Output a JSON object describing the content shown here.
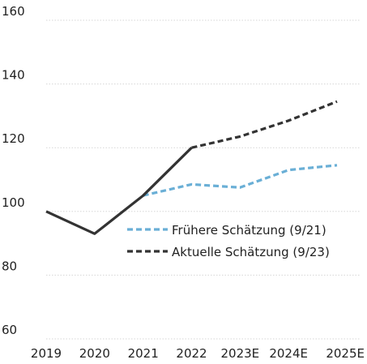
{
  "chart_data": {
    "type": "line",
    "title": "",
    "xlabel": "",
    "ylabel": "",
    "categories": [
      "2019",
      "2020",
      "2021",
      "2022",
      "2023E",
      "2024E",
      "2025E"
    ],
    "ylim": [
      60,
      160
    ],
    "yticks": [
      60,
      80,
      100,
      120,
      140,
      160
    ],
    "grid": true,
    "legend_position": "center-right",
    "series": [
      {
        "name": "Frühere Schätzung (9/21)",
        "color": "#6aafd6",
        "dash": "dashed",
        "x": [
          "2021",
          "2022",
          "2023E",
          "2024E",
          "2025E"
        ],
        "values": [
          105,
          108.5,
          107.5,
          113,
          114.5
        ]
      },
      {
        "name": "Aktuelle Schätzung (9/23)",
        "color": "#333333",
        "dash": "dashed",
        "x": [
          "2022",
          "2023E",
          "2024E",
          "2025E"
        ],
        "values": [
          120,
          123.5,
          128.5,
          134.5
        ]
      },
      {
        "name": "",
        "color": "#333333",
        "dash": "solid",
        "x": [
          "2019",
          "2020",
          "2021",
          "2022"
        ],
        "values": [
          100,
          93,
          105,
          120
        ]
      }
    ]
  }
}
